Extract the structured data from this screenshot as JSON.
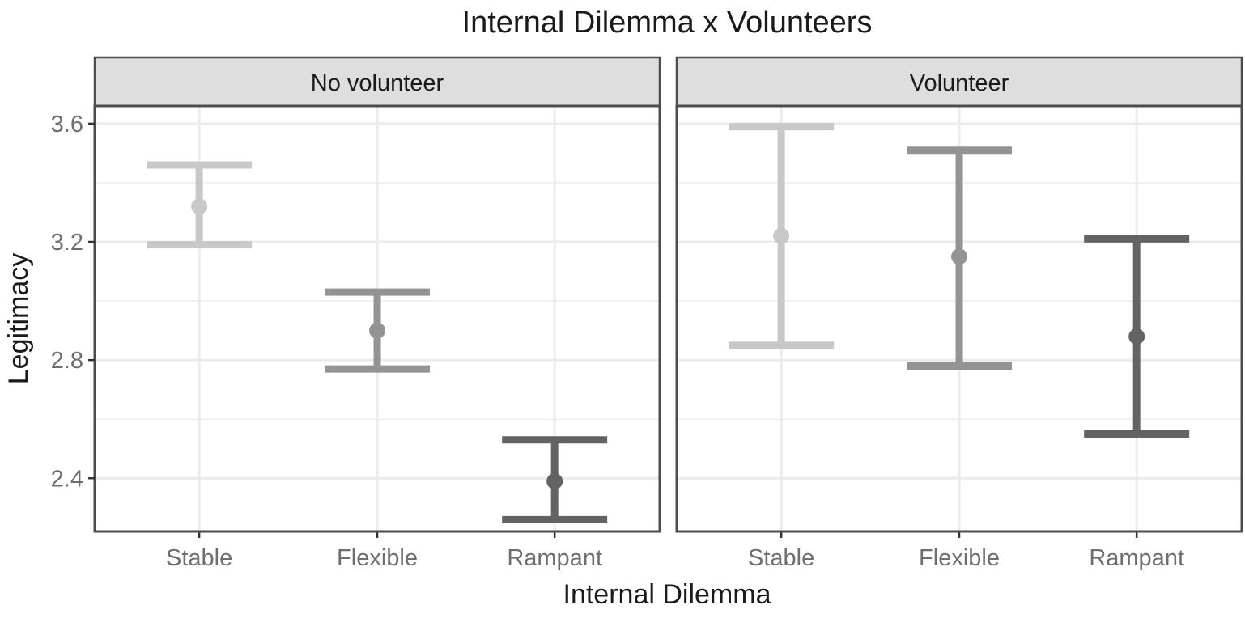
{
  "chart_data": {
    "type": "errorbar",
    "title": "Internal Dilemma x Volunteers",
    "xlabel": "Internal Dilemma",
    "ylabel": "Legitimacy",
    "categories": [
      "Stable",
      "Flexible",
      "Rampant"
    ],
    "category_colors": [
      "#c8c8c8",
      "#939393",
      "#636363"
    ],
    "yticks": [
      2.4,
      2.8,
      3.2,
      3.6
    ],
    "ytick_labels": [
      "2.4",
      "2.8",
      "3.2",
      "3.6"
    ],
    "ylim": [
      2.22,
      3.66
    ],
    "grid": true,
    "panel_strip_color": "#dedede",
    "panels": [
      {
        "label": "No volunteer",
        "points": [
          {
            "category": "Stable",
            "mean": 3.32,
            "lower": 3.19,
            "upper": 3.46
          },
          {
            "category": "Flexible",
            "mean": 2.9,
            "lower": 2.77,
            "upper": 3.03
          },
          {
            "category": "Rampant",
            "mean": 2.39,
            "lower": 2.26,
            "upper": 2.53
          }
        ]
      },
      {
        "label": "Volunteer",
        "points": [
          {
            "category": "Stable",
            "mean": 3.22,
            "lower": 2.85,
            "upper": 3.59
          },
          {
            "category": "Flexible",
            "mean": 3.15,
            "lower": 2.78,
            "upper": 3.51
          },
          {
            "category": "Rampant",
            "mean": 2.88,
            "lower": 2.55,
            "upper": 3.21
          }
        ]
      }
    ]
  }
}
